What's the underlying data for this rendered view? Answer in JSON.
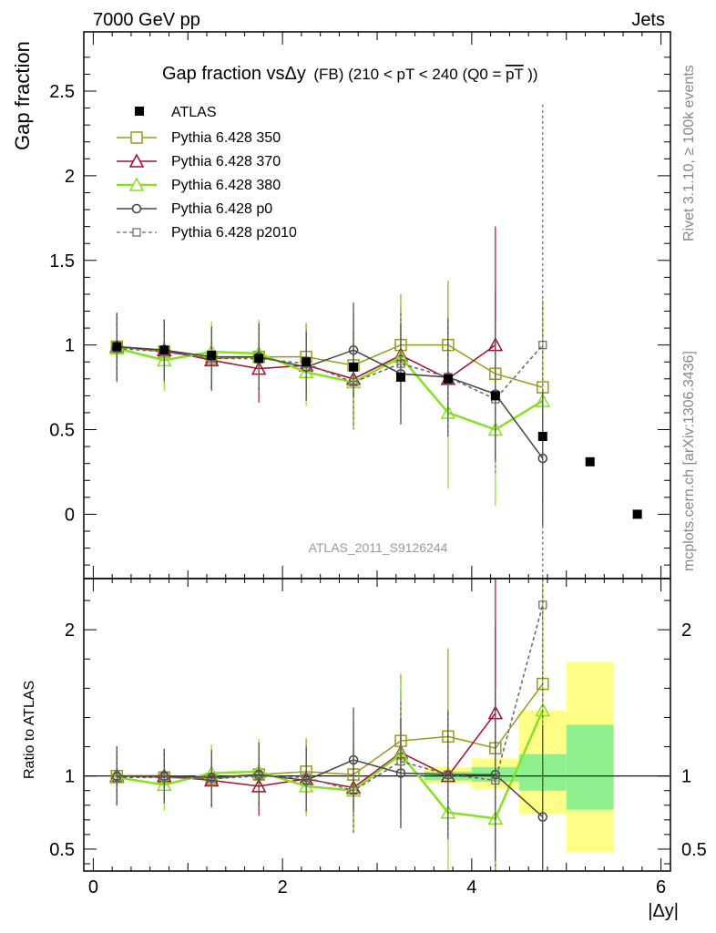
{
  "header": {
    "left": "7000 GeV pp",
    "right": "Jets",
    "side_top": "Rivet 3.1.10, ≥ 100k events",
    "side_bottom": "mcplots.cern.ch [arXiv:1306.3436]",
    "analysis": "ATLAS_2011_S9126244"
  },
  "chart_data": [
    {
      "type": "scatter",
      "title_main": "Gap fraction vsΔy",
      "title_sub": "(FB) (210 < pT < 240 (Q0 =",
      "title_pt": "pT",
      "title_end": "))",
      "ylabel": "Gap fraction",
      "xlabel": "|Δy|",
      "xlim": [
        -0.1,
        6.1
      ],
      "ylim": [
        -0.38,
        2.85
      ],
      "yticks": [
        "0",
        "0.5",
        "1",
        "1.5",
        "2",
        "2.5"
      ],
      "xticks": [
        "0",
        "2",
        "4",
        "6"
      ],
      "x": [
        0.25,
        0.75,
        1.25,
        1.75,
        2.25,
        2.75,
        3.25,
        3.75,
        4.25,
        4.75,
        5.25,
        5.75
      ],
      "data": {
        "name": "ATLAS",
        "values": [
          0.99,
          0.97,
          0.94,
          0.92,
          0.9,
          0.87,
          0.81,
          0.8,
          0.7,
          0.46,
          0.31,
          0.0
        ]
      },
      "series": [
        {
          "name": "Pythia 6.428 350",
          "color": "#9a9a1a",
          "marker": "square-open",
          "values": [
            0.99,
            0.96,
            0.92,
            0.93,
            0.93,
            0.88,
            1.0,
            1.0,
            0.83,
            0.75
          ],
          "err": [
            0.2,
            0.18,
            0.18,
            0.2,
            0.2,
            0.3,
            0.3,
            0.38,
            0.5,
            0.5
          ]
        },
        {
          "name": "Pythia 6.428 370",
          "color": "#a01030",
          "marker": "triangle-open",
          "values": [
            0.99,
            0.97,
            0.91,
            0.86,
            0.88,
            0.8,
            0.94,
            0.8,
            1.0,
            null
          ],
          "err": [
            0.2,
            0.18,
            0.18,
            0.2,
            0.2,
            0.28,
            0.3,
            0.35,
            0.7,
            null
          ]
        },
        {
          "name": "Pythia 6.428 380",
          "color": "#88e020",
          "marker": "triangle-open",
          "values": [
            0.98,
            0.91,
            0.96,
            0.95,
            0.84,
            0.78,
            0.93,
            0.6,
            0.5,
            0.67
          ],
          "err": [
            0.18,
            0.18,
            0.18,
            0.2,
            0.2,
            0.28,
            0.35,
            0.45,
            0.45,
            0.6
          ]
        },
        {
          "name": "Pythia 6.428 p0",
          "color": "#444444",
          "marker": "circle-open",
          "values": [
            0.99,
            0.97,
            0.93,
            0.93,
            0.87,
            0.97,
            0.83,
            0.81,
            0.71,
            0.33
          ],
          "err": [
            0.2,
            0.18,
            0.18,
            0.2,
            0.2,
            0.28,
            0.3,
            0.35,
            0.4,
            0.4
          ]
        },
        {
          "name": "Pythia 6.428 p2010",
          "color": "#666666",
          "marker": "square-open-small",
          "dashed": true,
          "values": [
            0.98,
            0.96,
            0.92,
            0.92,
            0.89,
            0.78,
            0.89,
            0.81,
            0.68,
            1.0
          ],
          "err": [
            0.2,
            0.18,
            0.18,
            0.2,
            0.2,
            0.28,
            0.3,
            0.35,
            0.45,
            1.42
          ]
        }
      ]
    },
    {
      "type": "scatter",
      "ylabel": "Ratio to ATLAS",
      "ylim": [
        0.35,
        2.35
      ],
      "yticks": [
        "0.5",
        "1",
        "2"
      ],
      "reference": 1.0,
      "bands": [
        {
          "x": [
            3.5,
            4.0
          ],
          "inner": [
            0.97,
            1.03
          ],
          "outer": [
            0.95,
            1.06
          ]
        },
        {
          "x": [
            4.0,
            4.5
          ],
          "inner": [
            0.96,
            1.06
          ],
          "outer": [
            0.91,
            1.12
          ]
        },
        {
          "x": [
            4.5,
            5.0
          ],
          "inner": [
            0.9,
            1.15
          ],
          "outer": [
            0.74,
            1.45
          ]
        },
        {
          "x": [
            5.0,
            5.5
          ],
          "inner": [
            0.77,
            1.35
          ],
          "outer": [
            0.48,
            1.78
          ]
        }
      ],
      "series": [
        {
          "name": "Pythia 6.428 350",
          "values": [
            1.0,
            0.99,
            0.98,
            1.01,
            1.03,
            1.01,
            1.24,
            1.27,
            1.19,
            1.63
          ]
        },
        {
          "name": "Pythia 6.428 370",
          "values": [
            1.0,
            1.0,
            0.97,
            0.93,
            0.98,
            0.92,
            1.16,
            1.0,
            1.43,
            null
          ]
        },
        {
          "name": "Pythia 6.428 380",
          "values": [
            0.99,
            0.94,
            1.02,
            1.03,
            0.93,
            0.9,
            1.15,
            0.75,
            0.71,
            1.45
          ]
        },
        {
          "name": "Pythia 6.428 p0",
          "values": [
            1.0,
            1.0,
            0.99,
            1.01,
            0.97,
            1.11,
            1.02,
            1.01,
            1.01,
            0.72
          ]
        },
        {
          "name": "Pythia 6.428 p2010",
          "values": [
            0.99,
            0.99,
            0.98,
            1.0,
            0.99,
            0.9,
            1.1,
            1.01,
            0.97,
            2.17
          ]
        }
      ]
    }
  ]
}
